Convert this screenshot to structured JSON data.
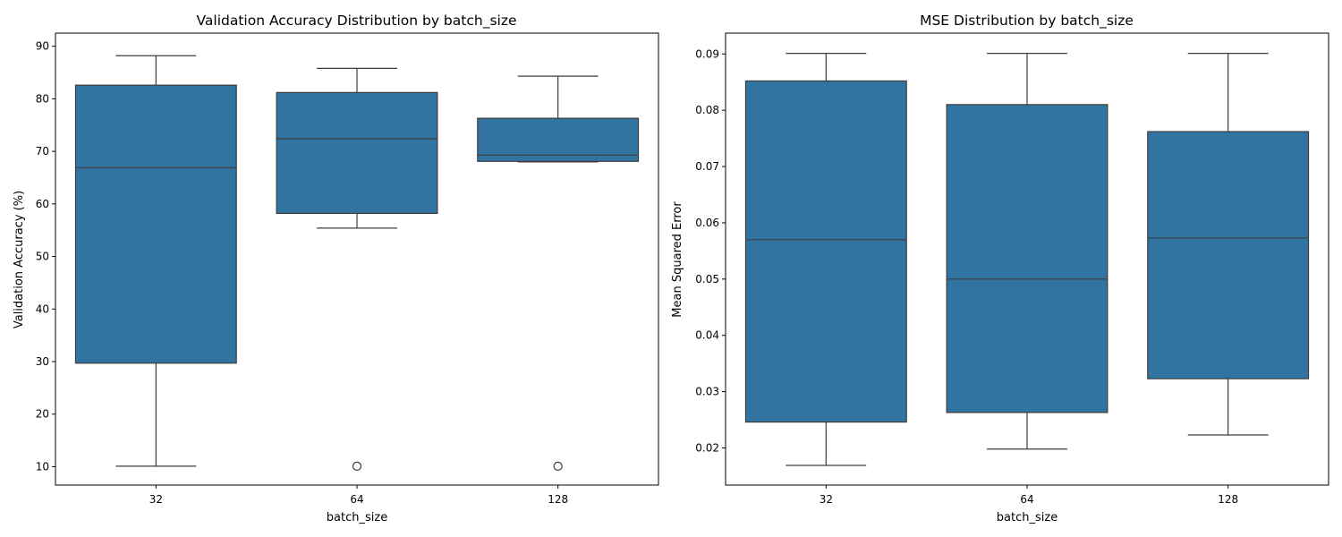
{
  "chart_data": [
    {
      "type": "box",
      "title": "Validation Accuracy Distribution by batch_size",
      "xlabel": "batch_size",
      "ylabel": "Validation Accuracy (%)",
      "categories": [
        "32",
        "64",
        "128"
      ],
      "ylim": [
        6.5,
        92.5
      ],
      "yticks": [
        10,
        20,
        30,
        40,
        50,
        60,
        70,
        80,
        90
      ],
      "ytick_labels": [
        "10",
        "20",
        "30",
        "40",
        "50",
        "60",
        "70",
        "80",
        "90"
      ],
      "color": "#3274a1",
      "boxes": [
        {
          "category": "32",
          "whisker_low": 10.1,
          "q1": 29.7,
          "median": 66.9,
          "q3": 82.6,
          "whisker_high": 88.2,
          "outliers": []
        },
        {
          "category": "64",
          "whisker_low": 55.4,
          "q1": 58.2,
          "median": 72.4,
          "q3": 81.2,
          "whisker_high": 85.8,
          "outliers": [
            10.1
          ]
        },
        {
          "category": "128",
          "whisker_low": 68.0,
          "q1": 68.1,
          "median": 69.3,
          "q3": 76.3,
          "whisker_high": 84.3,
          "outliers": [
            10.1
          ]
        }
      ]
    },
    {
      "type": "box",
      "title": "MSE Distribution by batch_size",
      "xlabel": "batch_size",
      "ylabel": "Mean Squared Error",
      "categories": [
        "32",
        "64",
        "128"
      ],
      "ylim": [
        0.0134,
        0.0937
      ],
      "yticks": [
        0.02,
        0.03,
        0.04,
        0.05,
        0.06,
        0.07,
        0.08,
        0.09
      ],
      "ytick_labels": [
        "0.02",
        "0.03",
        "0.04",
        "0.05",
        "0.06",
        "0.07",
        "0.08",
        "0.09"
      ],
      "color": "#3274a1",
      "boxes": [
        {
          "category": "32",
          "whisker_low": 0.0169,
          "q1": 0.0246,
          "median": 0.057,
          "q3": 0.0852,
          "whisker_high": 0.0901,
          "outliers": []
        },
        {
          "category": "64",
          "whisker_low": 0.0198,
          "q1": 0.0263,
          "median": 0.05,
          "q3": 0.081,
          "whisker_high": 0.0901,
          "outliers": []
        },
        {
          "category": "128",
          "whisker_low": 0.0223,
          "q1": 0.0323,
          "median": 0.0573,
          "q3": 0.0762,
          "whisker_high": 0.0901,
          "outliers": []
        }
      ]
    }
  ]
}
